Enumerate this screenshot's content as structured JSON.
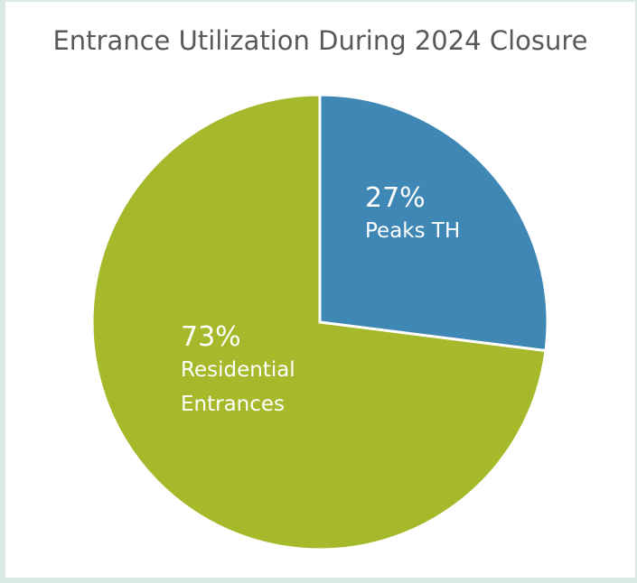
{
  "chart_data": {
    "type": "pie",
    "title": "Entrance Utilization During 2024 Closure",
    "categories": [
      "Peaks TH",
      "Residential Entrances"
    ],
    "values": [
      27,
      73
    ],
    "value_labels": [
      "27%",
      "73%"
    ],
    "colors": [
      "#3f88b5",
      "#a5b92a"
    ]
  }
}
